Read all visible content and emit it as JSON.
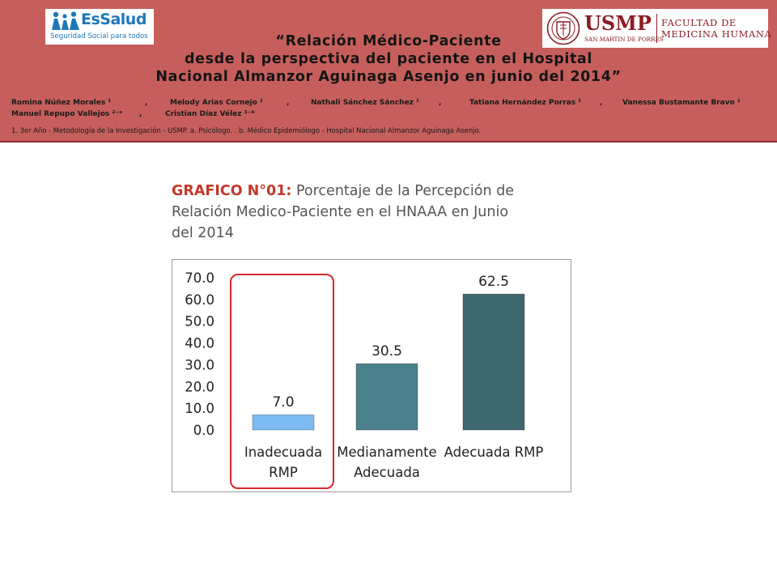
{
  "header": {
    "essalud_logo": {
      "name": "EsSalud",
      "tagline": "Seguridad Social para todos"
    },
    "usmp_logo": {
      "name": "USMP",
      "university": "SAN MARTIN DE PORRES",
      "faculty_line1": "FACULTAD DE",
      "faculty_line2": "MEDICINA HUMANA"
    },
    "title_lines": [
      "“Relación Médico-Paciente",
      "desde la perspectiva del paciente en el Hospital",
      "Nacional Almanzor Aguinaga Asenjo en junio del 2014”"
    ],
    "authors": [
      "Romina Núñez Morales ¹",
      ",",
      "Melody Arias Cornejo ¹",
      ",",
      "Nathali Sánchez Sánchez ¹",
      ",",
      "Tatiana Hernández Porras ¹",
      ",",
      "Vanessa Bustamante Bravo ¹",
      "Manuel Repupo Vallejos ²⁻ᵃ",
      ",",
      "Cristian Díaz Vélez ³⁻ᵇ"
    ],
    "affiliations": "1. 3er Año - Metodología de la Investigación - USMP.  a. Psicólogo.  . b. Médico Epidemiólogo - Hospital Nacional Almanzor Aguinaga Asenjo.",
    "colors": {
      "banner": "#c65f5c",
      "logo_blue": "#1d77b8",
      "usmp_red": "#8c1c26"
    }
  },
  "chart_heading": {
    "label": "GRAFICO N°01:",
    "lines": [
      " Porcentaje de la Percepción de",
      "Relación Medico-Paciente en el HNAAA en Junio",
      "del 2014"
    ]
  },
  "chart_data": {
    "type": "bar",
    "title": "GRAFICO N°01: Porcentaje de la Percepción de Relación Medico-Paciente en el HNAAA en Junio del 2014",
    "categories": [
      [
        "Inadecuada",
        "RMP"
      ],
      [
        "Medianamente",
        "Adecuada"
      ],
      [
        "Adecuada RMP"
      ]
    ],
    "values": [
      7.0,
      30.5,
      62.5
    ],
    "value_labels": [
      "7.0",
      "30.5",
      "62.5"
    ],
    "bar_colors": [
      "#7dbaf0",
      "#4b818d",
      "#3f676e"
    ],
    "ylim": [
      0,
      70
    ],
    "yticks": [
      "0.0",
      "10.0",
      "20.0",
      "30.0",
      "40.0",
      "50.0",
      "60.0",
      "70.0"
    ],
    "grid": false,
    "legend": "none",
    "highlighted_category": 0,
    "highlight_color": "#d8282a"
  }
}
